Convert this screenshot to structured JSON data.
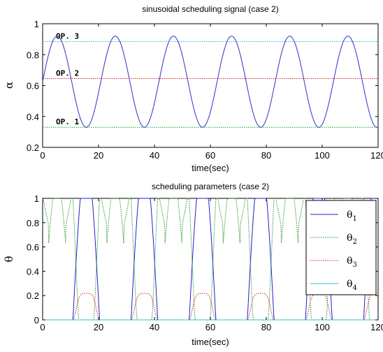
{
  "chart_data": [
    {
      "type": "line",
      "title": "sinusoidal scheduling signal (case 2)",
      "xlabel": "time(sec)",
      "ylabel": "α",
      "xlim": [
        0,
        120
      ],
      "ylim": [
        0.2,
        1
      ],
      "xticks": [
        "0",
        "20",
        "40",
        "60",
        "80",
        "100",
        "120"
      ],
      "yticks": [
        "0.2",
        "0.4",
        "0.6",
        "0.8",
        "1"
      ],
      "grid": false,
      "signal": {
        "color": "#3030c8",
        "offset": 0.625,
        "amplitude": 0.295,
        "period": 20.8,
        "t_peak": 5.2
      },
      "reference_lines": [
        {
          "label": "OP. 3",
          "value": 0.885,
          "color": "#20b8c8"
        },
        {
          "label": "OP. 2",
          "value": 0.645,
          "color": "#e02020"
        },
        {
          "label": "OP. 1",
          "value": 0.33,
          "color": "#20a020"
        }
      ]
    },
    {
      "type": "line",
      "title": "scheduling parameters (case 2)",
      "xlabel": "time(sec)",
      "ylabel": "θ",
      "xlim": [
        0,
        120
      ],
      "ylim": [
        0,
        1
      ],
      "xticks": [
        "0",
        "20",
        "40",
        "60",
        "80",
        "100",
        "120"
      ],
      "yticks": [
        "0",
        "0.2",
        "0.4",
        "0.6",
        "0.8",
        "1"
      ],
      "grid": false,
      "legend_position": "top-right",
      "operating_points": [
        0.33,
        0.645,
        0.885
      ],
      "series": [
        {
          "name": "θ",
          "sub": "1",
          "color": "#2020d0",
          "style": "solid"
        },
        {
          "name": "θ",
          "sub": "2",
          "color": "#209020",
          "style": "dotted"
        },
        {
          "name": "θ",
          "sub": "3",
          "color": "#e02020",
          "style": "dotted"
        },
        {
          "name": "θ",
          "sub": "4",
          "color": "#30c0d0",
          "style": "solid"
        }
      ]
    }
  ]
}
